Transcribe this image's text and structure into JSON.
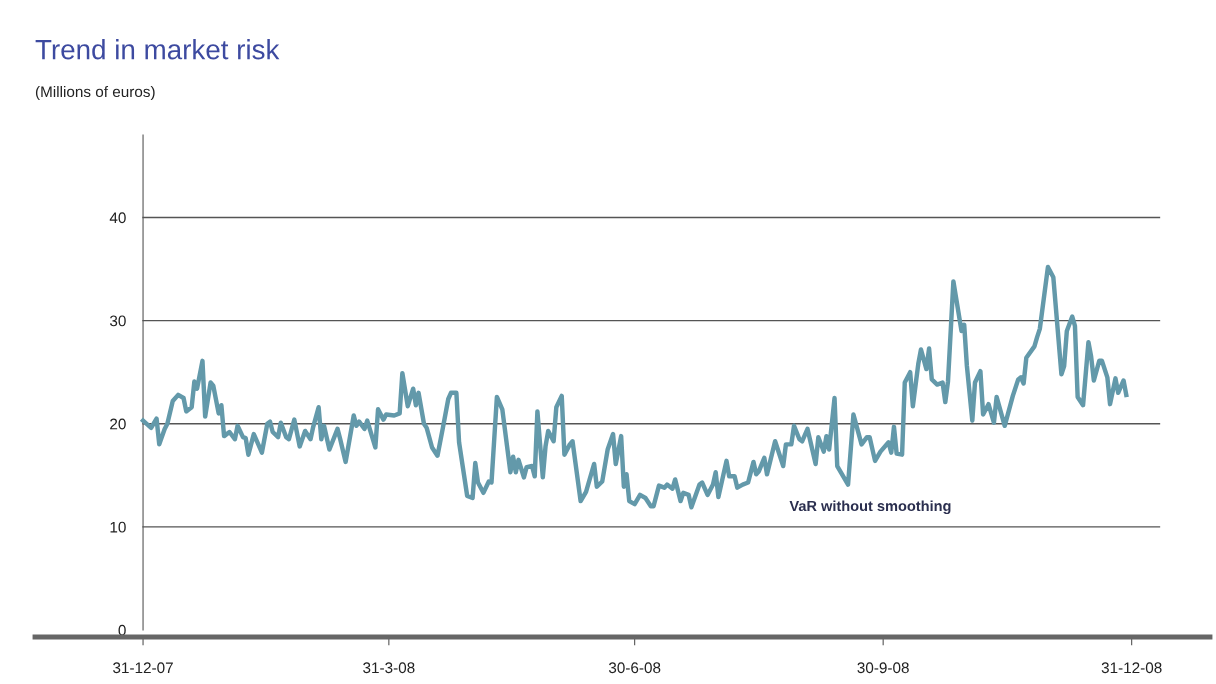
{
  "chart_data": {
    "type": "line",
    "title": "Trend in market risk",
    "subtitle": "(Millions of euros)",
    "x": [
      "2007-12-31",
      "2008-01-03",
      "2008-01-05",
      "2008-01-06",
      "2008-01-08",
      "2008-01-09",
      "2008-01-11",
      "2008-01-13",
      "2008-01-15",
      "2008-01-16",
      "2008-01-18",
      "2008-01-19",
      "2008-01-20",
      "2008-01-22",
      "2008-01-23",
      "2008-01-25",
      "2008-01-26",
      "2008-01-28",
      "2008-01-29",
      "2008-01-30",
      "2008-02-01",
      "2008-02-03",
      "2008-02-04",
      "2008-02-06",
      "2008-02-07",
      "2008-02-08",
      "2008-02-10",
      "2008-02-13",
      "2008-02-15",
      "2008-02-16",
      "2008-02-17",
      "2008-02-19",
      "2008-02-20",
      "2008-02-22",
      "2008-02-23",
      "2008-02-25",
      "2008-02-27",
      "2008-02-29",
      "2008-03-02",
      "2008-03-03",
      "2008-03-05",
      "2008-03-06",
      "2008-03-07",
      "2008-03-09",
      "2008-03-12",
      "2008-03-13",
      "2008-03-15",
      "2008-03-18",
      "2008-03-19",
      "2008-03-20",
      "2008-03-22",
      "2008-03-23",
      "2008-03-26",
      "2008-03-27",
      "2008-03-29",
      "2008-03-30",
      "2008-04-02",
      "2008-04-04",
      "2008-04-05",
      "2008-04-07",
      "2008-04-09",
      "2008-04-10",
      "2008-04-11",
      "2008-04-13",
      "2008-04-14",
      "2008-04-16",
      "2008-04-18",
      "2008-04-20",
      "2008-04-22",
      "2008-04-23",
      "2008-04-25",
      "2008-04-26",
      "2008-04-29",
      "2008-05-01",
      "2008-05-02",
      "2008-05-03",
      "2008-05-05",
      "2008-05-07",
      "2008-05-08",
      "2008-05-10",
      "2008-05-12",
      "2008-05-15",
      "2008-05-16",
      "2008-05-17",
      "2008-05-18",
      "2008-05-20",
      "2008-05-21",
      "2008-05-23",
      "2008-05-24",
      "2008-05-25",
      "2008-05-27",
      "2008-05-28",
      "2008-05-29",
      "2008-05-31",
      "2008-06-01",
      "2008-06-03",
      "2008-06-04",
      "2008-06-06",
      "2008-06-07",
      "2008-06-10",
      "2008-06-12",
      "2008-06-15",
      "2008-06-16",
      "2008-06-18",
      "2008-06-20",
      "2008-06-22",
      "2008-06-23",
      "2008-06-25",
      "2008-06-26",
      "2008-06-27",
      "2008-06-28",
      "2008-06-30",
      "2008-07-02",
      "2008-07-04",
      "2008-07-06",
      "2008-07-07",
      "2008-07-09",
      "2008-07-11",
      "2008-07-12",
      "2008-07-14",
      "2008-07-15",
      "2008-07-17",
      "2008-07-18",
      "2008-07-20",
      "2008-07-21",
      "2008-07-24",
      "2008-07-25",
      "2008-07-27",
      "2008-07-29",
      "2008-07-30",
      "2008-07-31",
      "2008-08-03",
      "2008-08-04",
      "2008-08-06",
      "2008-08-07",
      "2008-08-09",
      "2008-08-11",
      "2008-08-13",
      "2008-08-14",
      "2008-08-15",
      "2008-08-17",
      "2008-08-18",
      "2008-08-21",
      "2008-08-24",
      "2008-08-25",
      "2008-08-27",
      "2008-08-28",
      "2008-08-30",
      "2008-08-31",
      "2008-09-02",
      "2008-09-05",
      "2008-09-06",
      "2008-09-08",
      "2008-09-09",
      "2008-09-10",
      "2008-09-12",
      "2008-09-13",
      "2008-09-17",
      "2008-09-19",
      "2008-09-22",
      "2008-09-24",
      "2008-09-25",
      "2008-09-27",
      "2008-09-29",
      "2008-10-02",
      "2008-10-03",
      "2008-10-04",
      "2008-10-05",
      "2008-10-07",
      "2008-10-08",
      "2008-10-10",
      "2008-10-11",
      "2008-10-13",
      "2008-10-14",
      "2008-10-16",
      "2008-10-17",
      "2008-10-18",
      "2008-10-20",
      "2008-10-22",
      "2008-10-23",
      "2008-10-24",
      "2008-10-26",
      "2008-10-27",
      "2008-10-29",
      "2008-10-30",
      "2008-10-31",
      "2008-11-02",
      "2008-11-03",
      "2008-11-05",
      "2008-11-06",
      "2008-11-08",
      "2008-11-10",
      "2008-11-11",
      "2008-11-14",
      "2008-11-17",
      "2008-11-19",
      "2008-11-20",
      "2008-11-21",
      "2008-11-22",
      "2008-11-25",
      "2008-11-26",
      "2008-11-27",
      "2008-11-30",
      "2008-12-02",
      "2008-12-05",
      "2008-12-06",
      "2008-12-07",
      "2008-12-09",
      "2008-12-10",
      "2008-12-11",
      "2008-12-13",
      "2008-12-15",
      "2008-12-16",
      "2008-12-17",
      "2008-12-19",
      "2008-12-20",
      "2008-12-22",
      "2008-12-23",
      "2008-12-25",
      "2008-12-26",
      "2008-12-28",
      "2008-12-29"
    ],
    "series": [
      {
        "name": "VaR without smoothing",
        "color": "#6399aa",
        "values": [
          20.3,
          19.6,
          20.5,
          18.0,
          19.5,
          20.0,
          22.2,
          22.8,
          22.5,
          21.2,
          21.6,
          24.1,
          23.4,
          26.1,
          20.7,
          24.0,
          23.7,
          21.0,
          21.8,
          18.8,
          19.2,
          18.5,
          19.8,
          18.7,
          18.6,
          17.0,
          19.0,
          17.2,
          20.0,
          20.2,
          19.2,
          18.7,
          20.1,
          18.7,
          18.5,
          20.4,
          17.8,
          19.3,
          18.5,
          19.7,
          21.6,
          18.5,
          19.8,
          17.5,
          19.5,
          18.5,
          16.3,
          20.8,
          19.8,
          20.2,
          19.5,
          20.3,
          17.7,
          21.4,
          20.4,
          20.9,
          20.8,
          21.0,
          24.9,
          21.7,
          23.4,
          21.8,
          23.0,
          20.0,
          19.6,
          17.7,
          16.9,
          19.6,
          22.4,
          23.0,
          23.0,
          18.2,
          13.0,
          12.8,
          16.2,
          14.3,
          13.3,
          14.4,
          14.3,
          22.6,
          21.4,
          15.3,
          16.8,
          15.3,
          16.5,
          14.8,
          15.8,
          15.9,
          14.9,
          21.2,
          14.8,
          17.8,
          19.3,
          18.3,
          21.6,
          22.7,
          17.0,
          18.0,
          18.3,
          12.5,
          13.4,
          16.1,
          13.9,
          14.4,
          17.5,
          19.0,
          16.1,
          18.8,
          13.9,
          15.1,
          12.5,
          12.2,
          13.1,
          12.8,
          12.0,
          12.0,
          14.0,
          13.8,
          14.1,
          13.7,
          14.6,
          12.5,
          13.3,
          13.1,
          11.9,
          14.1,
          14.3,
          13.1,
          14.1,
          15.3,
          12.9,
          16.4,
          14.9,
          14.9,
          13.8,
          14.1,
          14.3,
          16.3,
          15.1,
          15.4,
          16.7,
          15.1,
          18.3,
          15.9,
          18.0,
          18.0,
          19.8,
          18.5,
          18.3,
          19.5,
          16.1,
          18.7,
          17.3,
          18.8,
          17.5,
          22.5,
          15.9,
          14.1,
          20.9,
          18.0,
          18.7,
          18.7,
          16.4,
          17.3,
          18.2,
          17.2,
          19.7,
          17.1,
          17.0,
          24.0,
          25.0,
          21.7,
          25.8,
          27.2,
          25.3,
          27.3,
          24.3,
          23.8,
          24.0,
          22.1,
          24.1,
          33.8,
          32.2,
          29.0,
          29.6,
          25.6,
          20.3,
          24.0,
          25.1,
          20.9,
          21.9,
          20.1,
          22.6,
          19.8,
          22.7,
          24.3,
          24.5,
          23.9,
          26.4,
          27.5,
          28.4,
          29.2,
          35.2,
          34.2,
          24.8,
          25.6,
          29.0,
          30.4,
          29.5,
          22.6,
          21.8,
          27.9,
          26.5,
          24.2,
          26.1,
          26.1,
          24.5,
          21.9,
          24.4,
          23.0,
          24.2,
          22.8
        ]
      }
    ],
    "xlim": [
      "2007-11-21",
      "2009-01-29"
    ],
    "xticks": [
      {
        "value": "2007-12-31",
        "label": "31-12-07"
      },
      {
        "value": "2008-03-31",
        "label": "31-3-08"
      },
      {
        "value": "2008-06-30",
        "label": "30-6-08"
      },
      {
        "value": "2008-09-30",
        "label": "30-9-08"
      },
      {
        "value": "2008-12-31",
        "label": "31-12-08"
      }
    ],
    "ylim": [
      0,
      48
    ],
    "yticks": [
      0,
      10,
      20,
      30,
      40
    ],
    "grid": "y",
    "line_style": "solid",
    "marker": "none",
    "legend": false
  }
}
